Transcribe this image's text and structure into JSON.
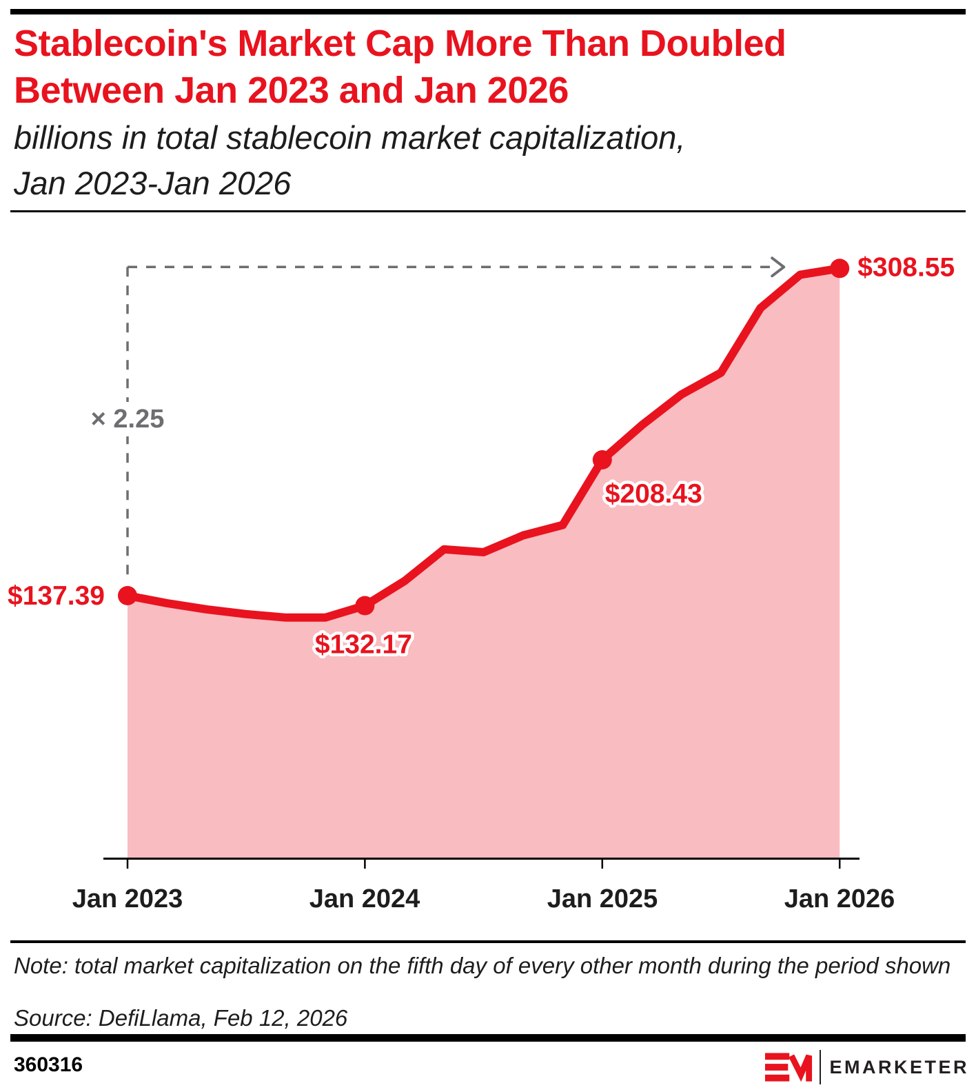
{
  "header": {
    "title_line1": "Stablecoin's Market Cap More Than Doubled",
    "title_line2": "Between Jan 2023 and Jan 2026",
    "subtitle_line1": "billions in total stablecoin market capitalization,",
    "subtitle_line2": "Jan 2023-Jan 2026"
  },
  "chart_data": {
    "type": "area",
    "title": "billions in total stablecoin market capitalization, Jan 2023-Jan 2026",
    "x": [
      "Jan 2023",
      "Mar 2023",
      "May 2023",
      "Jul 2023",
      "Sep 2023",
      "Nov 2023",
      "Jan 2024",
      "Mar 2024",
      "May 2024",
      "Jul 2024",
      "Sep 2024",
      "Nov 2024",
      "Jan 2025",
      "Mar 2025",
      "May 2025",
      "Jul 2025",
      "Sep 2025",
      "Nov 2025",
      "Jan 2026"
    ],
    "values": [
      137.39,
      133.4,
      130.2,
      127.7,
      125.9,
      125.9,
      132.17,
      145.0,
      161.6,
      160.1,
      168.9,
      174.3,
      208.43,
      226.5,
      242.6,
      254.0,
      287.8,
      305.2,
      308.55
    ],
    "labeled_points": [
      {
        "i": 0,
        "x": "Jan 2023",
        "value": 137.39,
        "label": "$137.39"
      },
      {
        "i": 6,
        "x": "Jan 2024",
        "value": 132.17,
        "label": "$132.17"
      },
      {
        "i": 12,
        "x": "Jan 2025",
        "value": 208.43,
        "label": "$208.43"
      },
      {
        "i": 18,
        "x": "Jan 2026",
        "value": 308.55,
        "label": "$308.55"
      }
    ],
    "annotation": {
      "label": "× 2.25",
      "from_x": "Jan 2023",
      "to_x": "Jan 2026"
    },
    "x_tick_labels": [
      "Jan 2023",
      "Jan 2024",
      "Jan 2025",
      "Jan 2026"
    ],
    "ylim": [
      0,
      320
    ],
    "grid": false,
    "legend": "none",
    "colors": {
      "line": "#e8131e",
      "fill": "#f8bcc1",
      "annotation_gray": "#6d6e71",
      "title_red": "#e8131e"
    }
  },
  "footer": {
    "note": "Note: total market capitalization on the fifth day of every other month during the period shown",
    "source": "Source: DefiLlama, Feb 12, 2026",
    "chart_id": "360316",
    "brand_wordmark": "EMARKETER"
  }
}
